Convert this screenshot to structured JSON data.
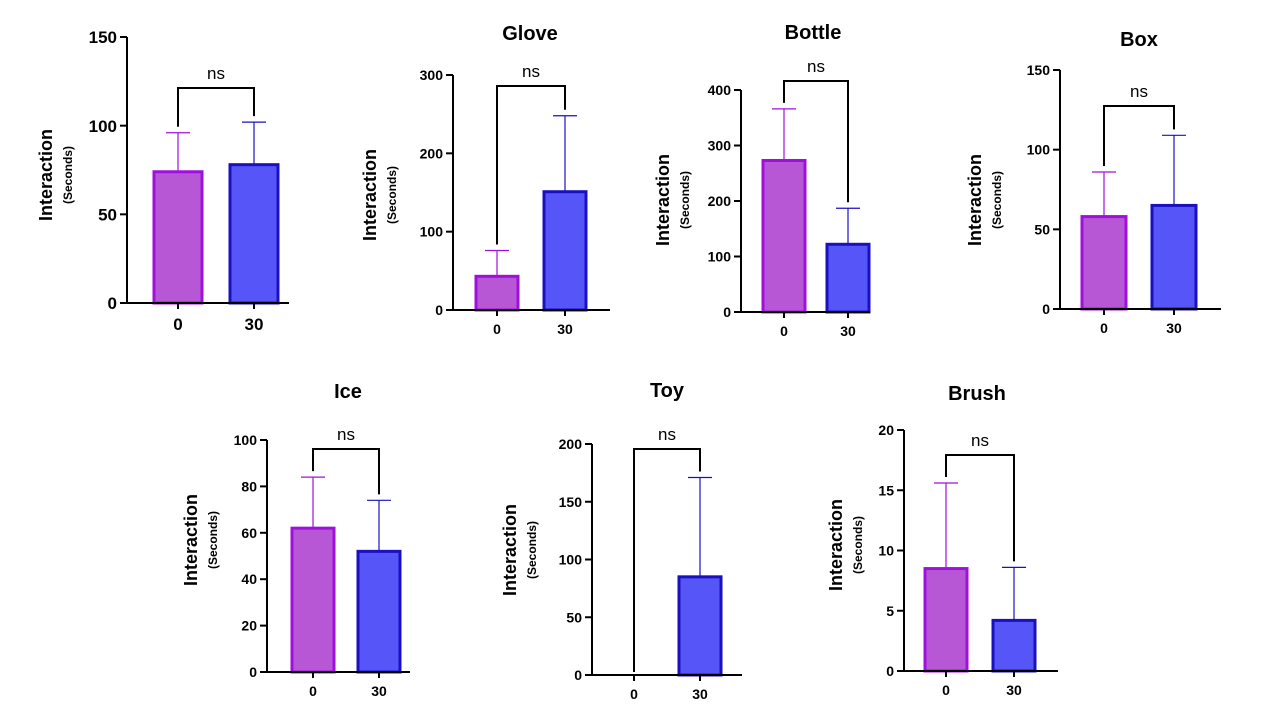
{
  "colors": {
    "bar0_fill": "#b857d6",
    "bar0_stroke": "#a010dc",
    "bar30_fill": "#5656f8",
    "bar30_stroke": "#1a10c0",
    "axis": "#000000"
  },
  "chart_data": [
    {
      "type": "bar",
      "title": "",
      "xlabel": "",
      "ylabel": "Interaction",
      "ylabel_sub": "(Seconds)",
      "categories": [
        "0",
        "30"
      ],
      "values": [
        74,
        78
      ],
      "error": [
        96,
        102
      ],
      "ylim": [
        0,
        150
      ],
      "yticks": [
        0,
        50,
        100,
        150
      ],
      "significance": "ns"
    },
    {
      "type": "bar",
      "title": "Glove",
      "xlabel": "",
      "ylabel": "Interaction",
      "ylabel_sub": "(Seconds)",
      "categories": [
        "0",
        "30"
      ],
      "values": [
        43,
        151
      ],
      "error": [
        76,
        248
      ],
      "ylim": [
        0,
        300
      ],
      "yticks": [
        0,
        100,
        200,
        300
      ],
      "significance": "ns"
    },
    {
      "type": "bar",
      "title": "Bottle",
      "xlabel": "",
      "ylabel": "Interaction",
      "ylabel_sub": "(Seconds)",
      "categories": [
        "0",
        "30"
      ],
      "values": [
        273,
        122
      ],
      "error": [
        366,
        187
      ],
      "ylim": [
        0,
        400
      ],
      "yticks": [
        0,
        100,
        200,
        300,
        400
      ],
      "significance": "ns"
    },
    {
      "type": "bar",
      "title": "Box",
      "xlabel": "",
      "ylabel": "Interaction",
      "ylabel_sub": "(Seconds)",
      "categories": [
        "0",
        "30"
      ],
      "values": [
        58,
        65
      ],
      "error": [
        86,
        109
      ],
      "ylim": [
        0,
        150
      ],
      "yticks": [
        0,
        50,
        100,
        150
      ],
      "significance": "ns"
    },
    {
      "type": "bar",
      "title": "Ice",
      "xlabel": "",
      "ylabel": "Interaction",
      "ylabel_sub": "(Seconds)",
      "categories": [
        "0",
        "30"
      ],
      "values": [
        62,
        52
      ],
      "error": [
        84,
        74
      ],
      "ylim": [
        0,
        100
      ],
      "yticks": [
        0,
        20,
        40,
        60,
        80,
        100
      ],
      "significance": "ns"
    },
    {
      "type": "bar",
      "title": "Toy",
      "xlabel": "",
      "ylabel": "Interaction",
      "ylabel_sub": "(Seconds)",
      "categories": [
        "0",
        "30"
      ],
      "values": [
        0,
        85
      ],
      "error": [
        0,
        171
      ],
      "ylim": [
        0,
        200
      ],
      "yticks": [
        0,
        50,
        100,
        150,
        200
      ],
      "significance": "ns"
    },
    {
      "type": "bar",
      "title": "Brush",
      "xlabel": "",
      "ylabel": "Interaction",
      "ylabel_sub": "(Seconds)",
      "categories": [
        "0",
        "30"
      ],
      "values": [
        8.5,
        4.2
      ],
      "error": [
        15.6,
        8.6
      ],
      "ylim": [
        0,
        20
      ],
      "yticks": [
        0,
        5,
        10,
        15,
        20
      ],
      "significance": "ns"
    }
  ]
}
